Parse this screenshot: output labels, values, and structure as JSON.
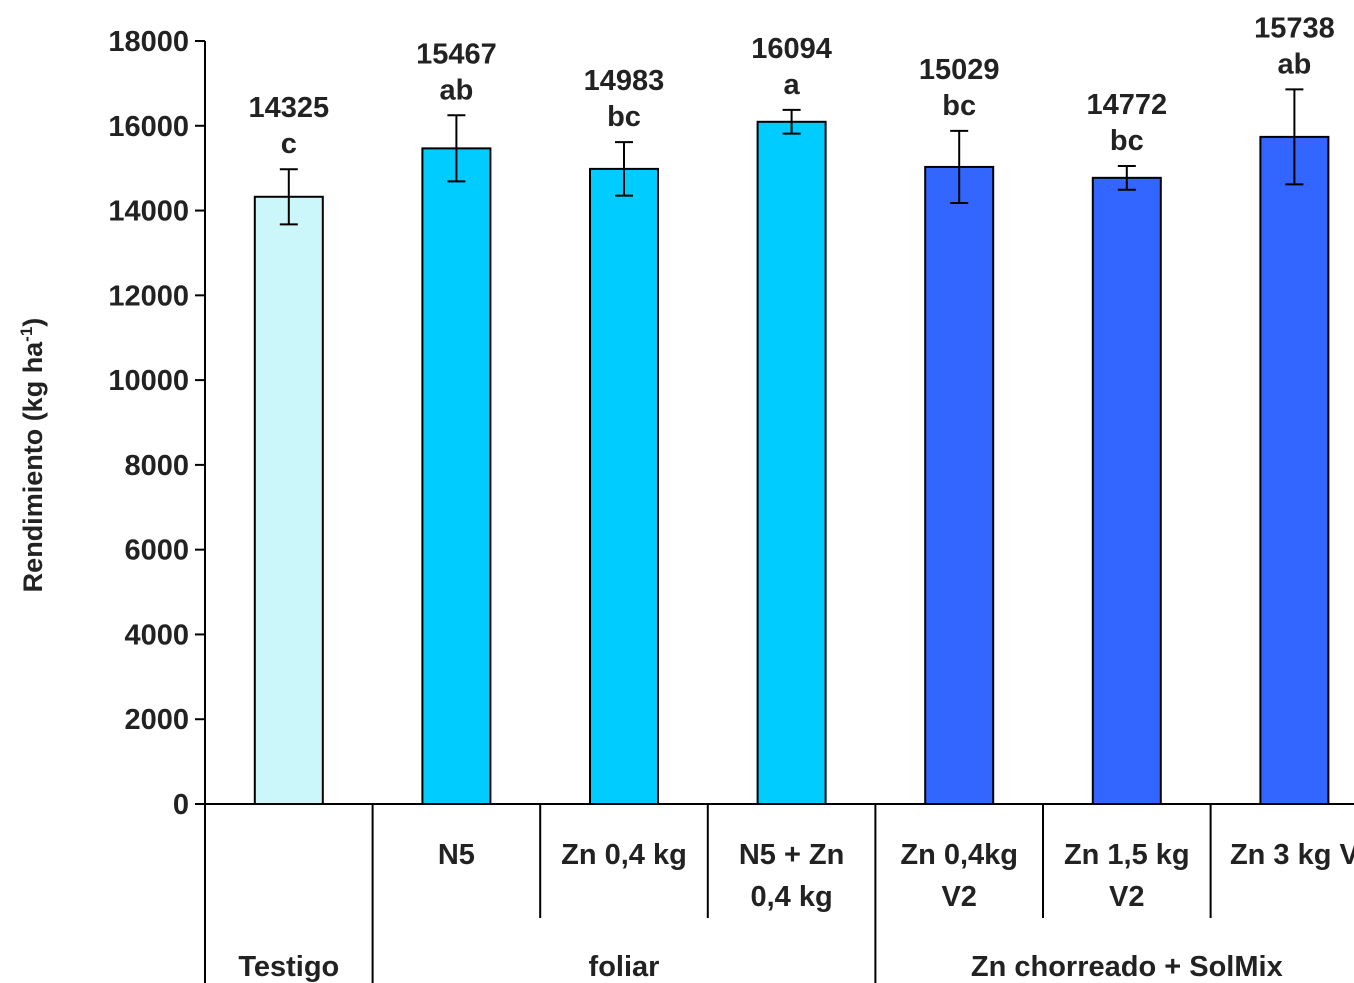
{
  "chart_data": {
    "type": "bar",
    "ylabel": "Rendimiento (kg ha",
    "ylabel_superscript": "-1",
    "ylabel_close": ")",
    "ylim": [
      0,
      18000
    ],
    "yticks": [
      "0",
      "2000",
      "4000",
      "6000",
      "8000",
      "10000",
      "12000",
      "14000",
      "16000",
      "18000"
    ],
    "categories": [
      "",
      "N5",
      "Zn 0,4 kg",
      "N5 + Zn 0,4 kg",
      "Zn 0,4kg V2",
      "Zn 1,5 kg V2",
      "Zn 3 kg V"
    ],
    "category_lines": [
      [],
      [
        "N5"
      ],
      [
        "Zn 0,4 kg"
      ],
      [
        "N5 + Zn",
        "0,4 kg"
      ],
      [
        "Zn 0,4kg",
        "V2"
      ],
      [
        "Zn 1,5 kg",
        "V2"
      ],
      [
        "Zn 3 kg V"
      ]
    ],
    "values": [
      14325,
      15467,
      14983,
      16094,
      15029,
      14772,
      15738
    ],
    "value_labels": [
      "14325",
      "15467",
      "14983",
      "16094",
      "15029",
      "14772",
      "15738"
    ],
    "significance": [
      "c",
      "ab",
      "bc",
      "a",
      "bc",
      "bc",
      "ab"
    ],
    "error": [
      650,
      780,
      630,
      280,
      850,
      280,
      1120
    ],
    "bar_colors": [
      "#ccf7fa",
      "#00ccff",
      "#00ccff",
      "#00ccff",
      "#3366ff",
      "#3366ff",
      "#3366ff"
    ],
    "groups": [
      {
        "label": "Testigo",
        "members": [
          0
        ]
      },
      {
        "label": "foliar",
        "members": [
          1,
          2,
          3
        ]
      },
      {
        "label": "Zn chorreado + SolMix",
        "members": [
          4,
          5,
          6
        ]
      }
    ],
    "grid": false,
    "legend": "none"
  },
  "colors": {
    "testigo": "#ccf7fa",
    "foliar": "#00ccff",
    "chorreado": "#3366ff",
    "axis": "#000000"
  }
}
